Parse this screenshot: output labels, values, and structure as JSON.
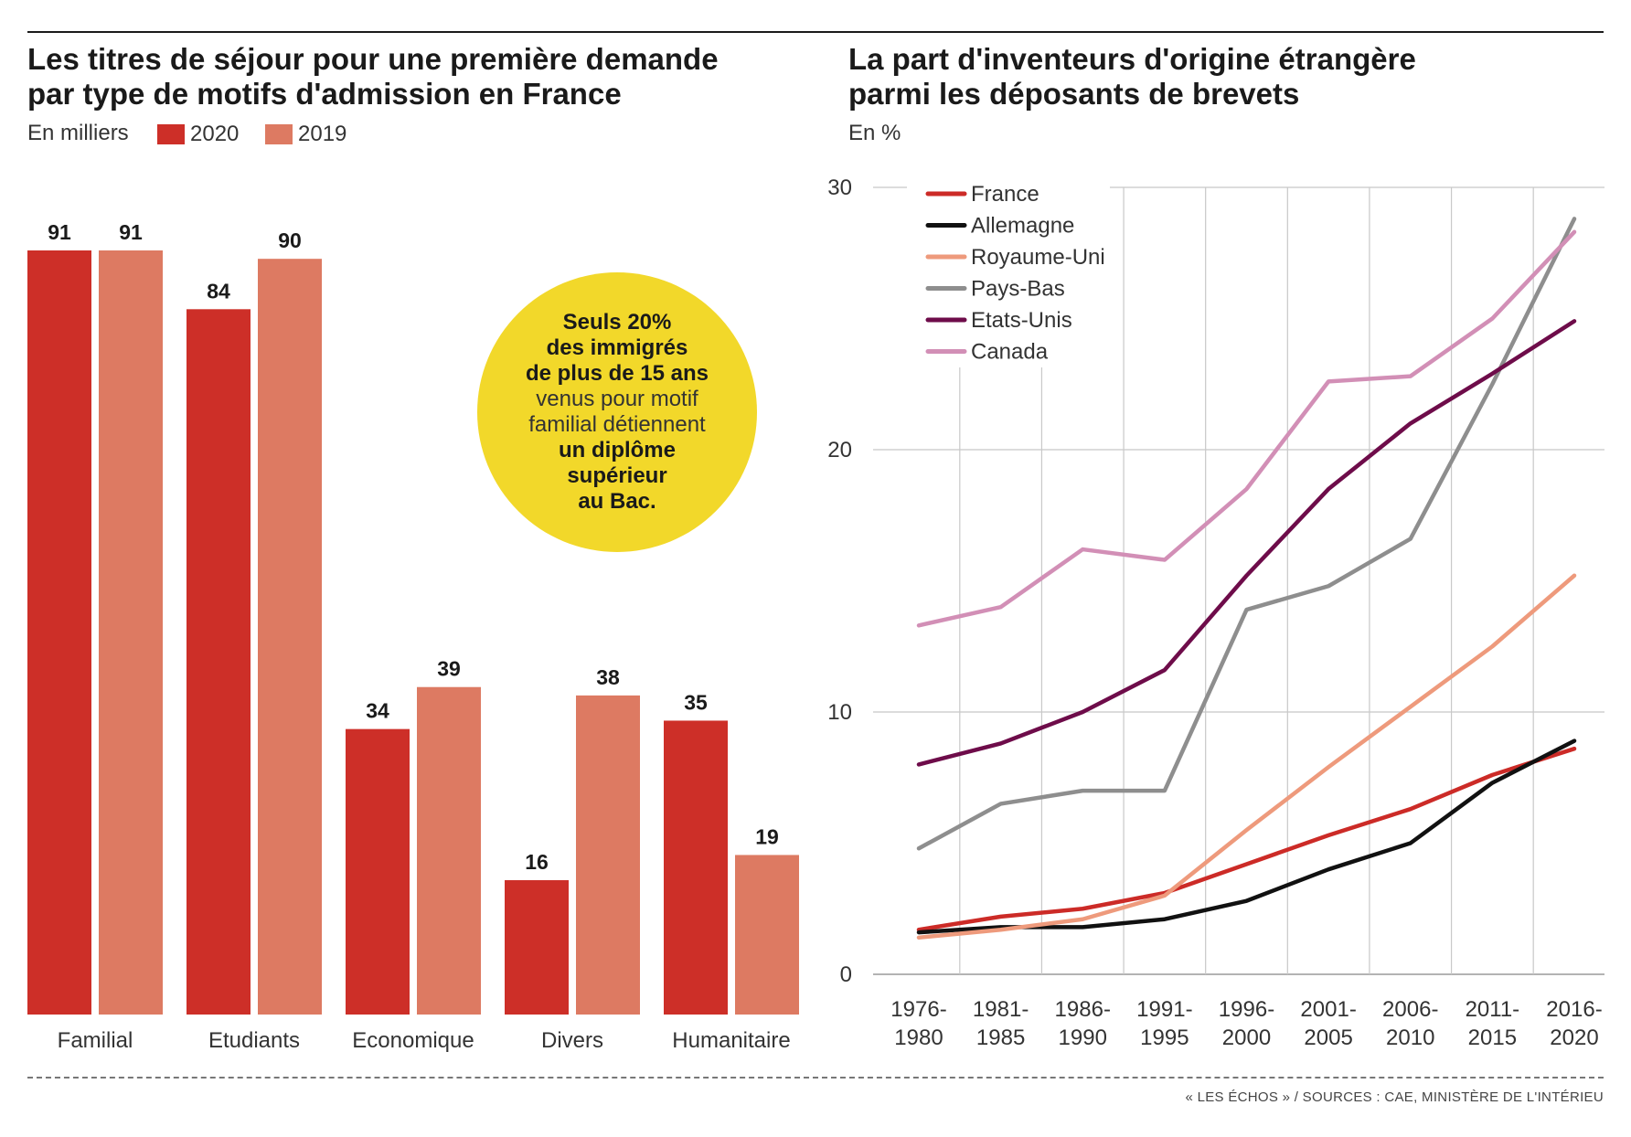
{
  "colors": {
    "y2020": "#cd2f28",
    "y2019": "#dd7a62",
    "bubble": "#f2d82a"
  },
  "bar_panel": {
    "title_line1": "Les titres de séjour pour une première demande",
    "title_line2": "par type de motifs d'admission en France",
    "unit": "En milliers",
    "legend_2020": "2020",
    "legend_2019": "2019"
  },
  "bubble": {
    "line1": "Seuls 20%",
    "line2": "des immigrés",
    "line3": "de plus de 15 ans",
    "line4": "venus pour motif",
    "line5": "familial détiennent",
    "line6": "un diplôme",
    "line7": "supérieur",
    "line8": "au Bac."
  },
  "line_panel": {
    "title_line1": "La part d'inventeurs d'origine étrangère",
    "title_line2": "parmi les déposants de brevets",
    "unit": "En %"
  },
  "source": "« LES ÉCHOS » / SOURCES : CAE, MINISTÈRE DE L'INTÉRIEU",
  "chart_data": [
    {
      "type": "bar",
      "title": "Les titres de séjour pour une première demande par type de motifs d'admission en France",
      "ylabel": "En milliers",
      "categories": [
        "Familial",
        "Etudiants",
        "Economique",
        "Divers",
        "Humanitaire"
      ],
      "series": [
        {
          "name": "2020",
          "values": [
            91,
            84,
            34,
            16,
            35
          ],
          "color": "#cd2f28"
        },
        {
          "name": "2019",
          "values": [
            91,
            90,
            39,
            38,
            19
          ],
          "color": "#dd7a62"
        }
      ],
      "ylim": [
        0,
        91
      ],
      "legend": "top-left"
    },
    {
      "type": "line",
      "title": "La part d'inventeurs d'origine étrangère parmi les déposants de brevets",
      "ylabel": "En %",
      "x": [
        "1976-1980",
        "1981-1985",
        "1986-1990",
        "1991-1995",
        "1996-2000",
        "2001-2005",
        "2006-2010",
        "2011-2015",
        "2016-2020"
      ],
      "ylim": [
        0,
        30
      ],
      "yticks": [
        0,
        10,
        20,
        30
      ],
      "grid": true,
      "legend": "top-left",
      "series": [
        {
          "name": "France",
          "color": "#cc2b27",
          "values": [
            1.7,
            2.2,
            2.5,
            3.1,
            4.2,
            5.3,
            6.3,
            7.6,
            8.6
          ]
        },
        {
          "name": "Allemagne",
          "color": "#111111",
          "values": [
            1.6,
            1.8,
            1.8,
            2.1,
            2.8,
            4.0,
            5.0,
            7.3,
            8.9
          ]
        },
        {
          "name": "Royaume-Uni",
          "color": "#ee9a7c",
          "values": [
            1.4,
            1.7,
            2.1,
            3.0,
            5.5,
            7.9,
            10.2,
            12.5,
            15.2
          ]
        },
        {
          "name": "Pays-Bas",
          "color": "#8e8e8e",
          "values": [
            4.8,
            6.5,
            7.0,
            7.0,
            13.9,
            14.8,
            16.6,
            22.5,
            28.8
          ]
        },
        {
          "name": "Etats-Unis",
          "color": "#6e0c4a",
          "values": [
            8.0,
            8.8,
            10.0,
            11.6,
            15.2,
            18.5,
            21.0,
            22.9,
            24.9
          ]
        },
        {
          "name": "Canada",
          "color": "#d28fb6",
          "values": [
            13.3,
            14.0,
            16.2,
            15.8,
            18.5,
            22.6,
            22.8,
            25.0,
            28.3
          ]
        }
      ]
    }
  ]
}
